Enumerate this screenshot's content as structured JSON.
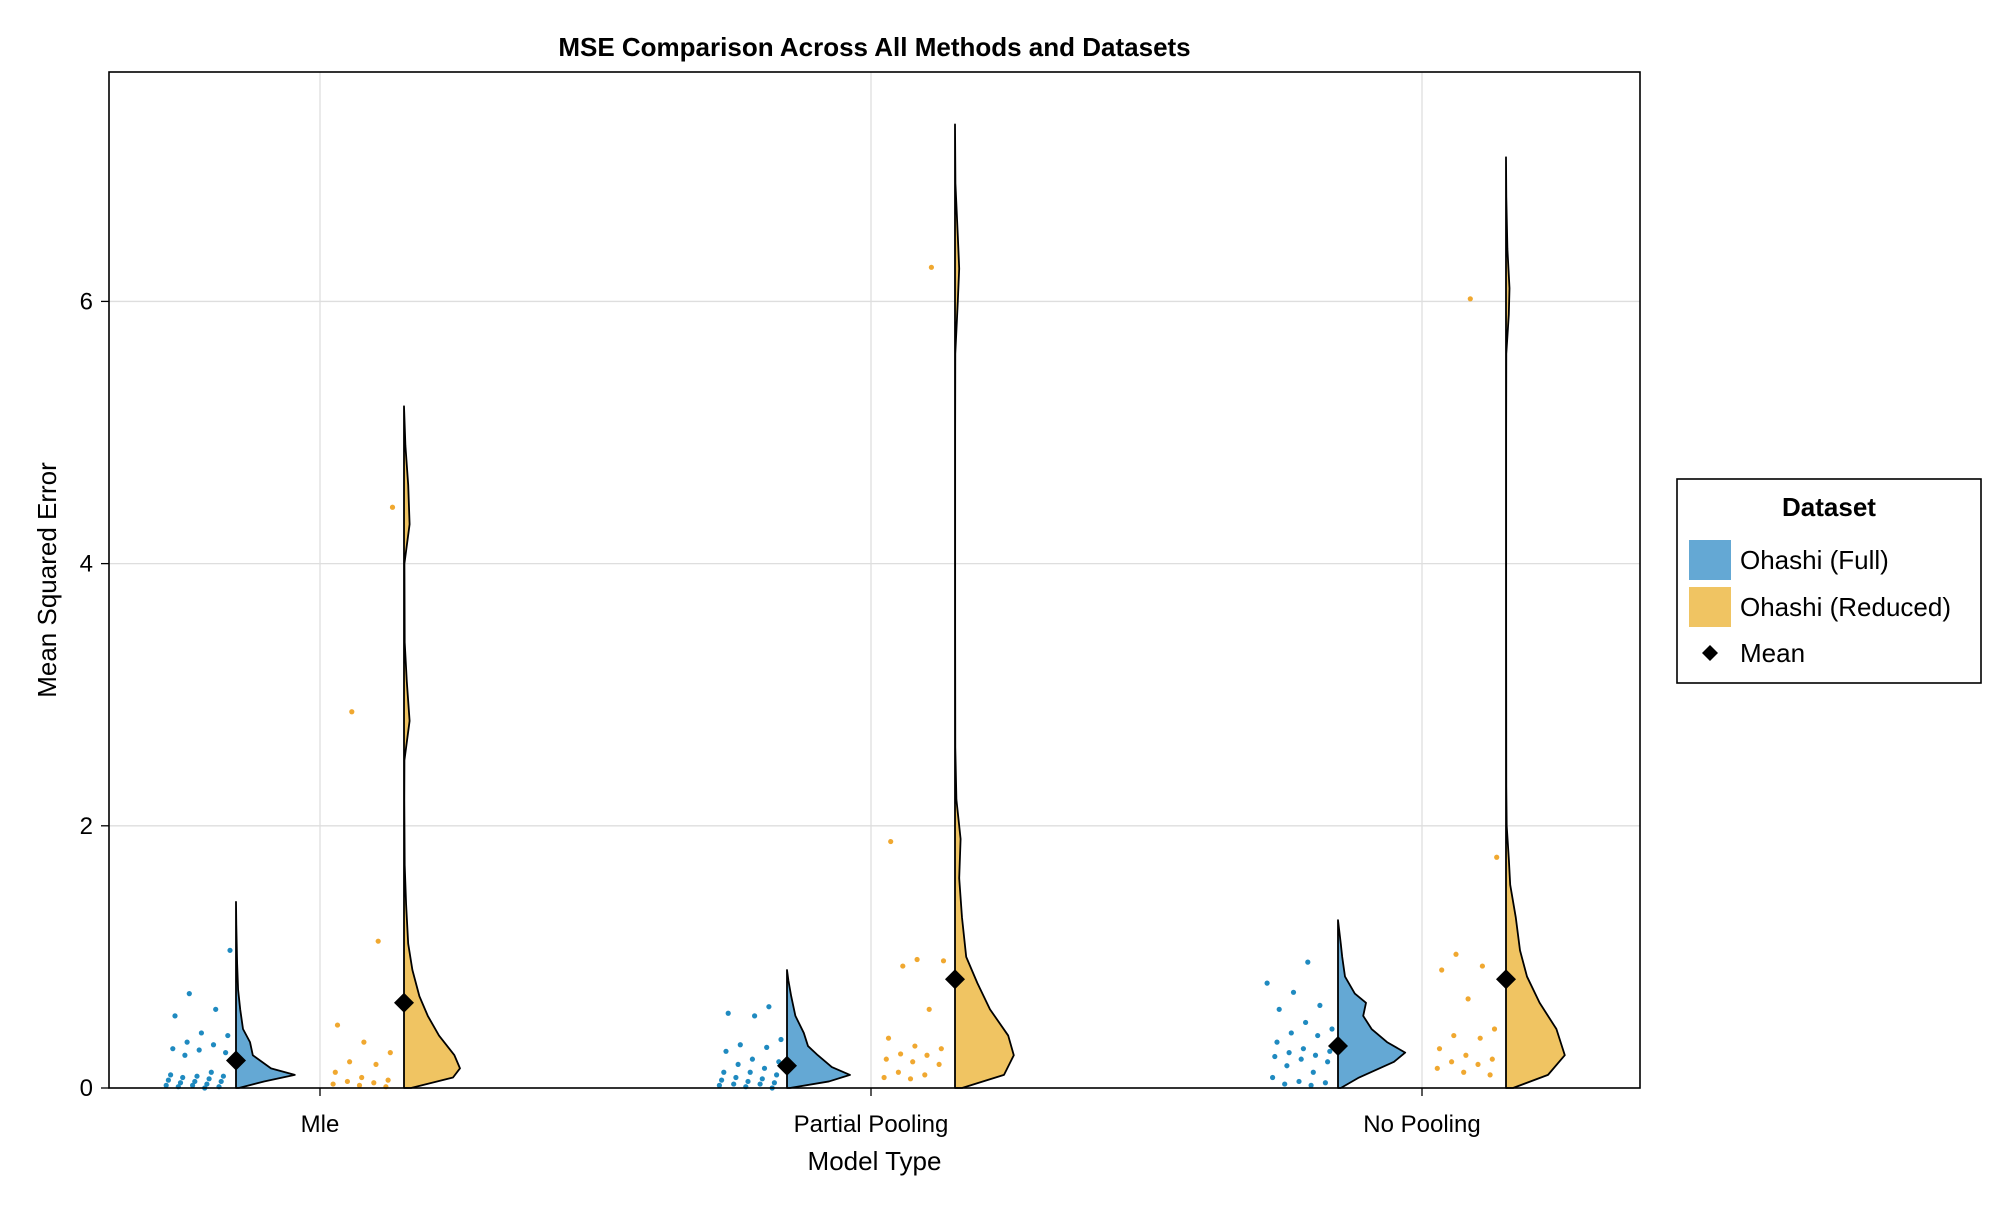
{
  "chart_data": {
    "type": "violin",
    "title": "MSE Comparison Across All Methods and Datasets",
    "xlabel": "Model Type",
    "ylabel": "Mean Squared Error",
    "categories": [
      "Mle",
      "Partial Pooling",
      "No Pooling"
    ],
    "ylim": [
      0,
      7.75
    ],
    "yticks": [
      0,
      2,
      4,
      6
    ],
    "grid": true,
    "legend": {
      "title": "Dataset",
      "position": "right",
      "entries": [
        "Ohashi (Full)",
        "Ohashi (Reduced)",
        "Mean"
      ]
    },
    "colors": {
      "full": "#64a8d4",
      "full_points": "#1f8ac0",
      "reduced": "#f0c462",
      "reduced_points": "#f0a830",
      "mean_marker": "#000000"
    },
    "series": [
      {
        "name": "Ohashi (Full)",
        "means": [
          0.21,
          0.17,
          0.32
        ],
        "max": [
          1.42,
          0.9,
          1.28
        ],
        "density": [
          [
            [
              0,
              0.02
            ],
            [
              0.05,
              0.2
            ],
            [
              0.1,
              0.42
            ],
            [
              0.15,
              0.25
            ],
            [
              0.25,
              0.12
            ],
            [
              0.35,
              0.1
            ],
            [
              0.45,
              0.05
            ],
            [
              0.6,
              0.03
            ],
            [
              0.75,
              0.015
            ],
            [
              0.95,
              0.008
            ],
            [
              1.1,
              0.005
            ],
            [
              1.25,
              0.002
            ],
            [
              1.42,
              0
            ]
          ],
          [
            [
              0,
              0.02
            ],
            [
              0.05,
              0.3
            ],
            [
              0.1,
              0.45
            ],
            [
              0.16,
              0.32
            ],
            [
              0.25,
              0.22
            ],
            [
              0.32,
              0.15
            ],
            [
              0.42,
              0.12
            ],
            [
              0.55,
              0.06
            ],
            [
              0.7,
              0.03
            ],
            [
              0.82,
              0.01
            ],
            [
              0.9,
              0
            ]
          ],
          [
            [
              0,
              0.02
            ],
            [
              0.08,
              0.15
            ],
            [
              0.2,
              0.4
            ],
            [
              0.27,
              0.48
            ],
            [
              0.35,
              0.35
            ],
            [
              0.45,
              0.24
            ],
            [
              0.55,
              0.18
            ],
            [
              0.65,
              0.2
            ],
            [
              0.72,
              0.12
            ],
            [
              0.85,
              0.05
            ],
            [
              1.0,
              0.03
            ],
            [
              1.1,
              0.02
            ],
            [
              1.28,
              0
            ]
          ]
        ],
        "points": [
          [
            1.05,
            0.72,
            0.6,
            0.55,
            0.42,
            0.4,
            0.35,
            0.33,
            0.3,
            0.29,
            0.27,
            0.25,
            0.12,
            0.1,
            0.09,
            0.09,
            0.08,
            0.07,
            0.06,
            0.05,
            0.05,
            0.04,
            0.03,
            0.02,
            0.02,
            0.01,
            0.01,
            0.0
          ],
          [
            0.62,
            0.57,
            0.55,
            0.37,
            0.33,
            0.31,
            0.28,
            0.22,
            0.2,
            0.18,
            0.15,
            0.12,
            0.12,
            0.1,
            0.08,
            0.07,
            0.06,
            0.05,
            0.04,
            0.03,
            0.03,
            0.02,
            0.01,
            0.0
          ],
          [
            0.96,
            0.8,
            0.73,
            0.63,
            0.6,
            0.5,
            0.45,
            0.42,
            0.4,
            0.35,
            0.3,
            0.28,
            0.27,
            0.25,
            0.24,
            0.22,
            0.2,
            0.17,
            0.12,
            0.08,
            0.05,
            0.04,
            0.03,
            0.02
          ]
        ]
      },
      {
        "name": "Ohashi (Reduced)",
        "means": [
          0.65,
          0.83,
          0.83
        ],
        "max": [
          5.2,
          7.35,
          7.1
        ],
        "density": [
          [
            [
              0,
              0.05
            ],
            [
              0.08,
              0.35
            ],
            [
              0.15,
              0.4
            ],
            [
              0.25,
              0.36
            ],
            [
              0.4,
              0.25
            ],
            [
              0.55,
              0.17
            ],
            [
              0.7,
              0.11
            ],
            [
              0.9,
              0.06
            ],
            [
              1.1,
              0.03
            ],
            [
              1.4,
              0.015
            ],
            [
              1.7,
              0.005
            ],
            [
              2.2,
              0.002
            ],
            [
              2.5,
              0.003
            ],
            [
              2.8,
              0.04
            ],
            [
              3.1,
              0.02
            ],
            [
              3.4,
              0.005
            ],
            [
              4.0,
              0.003
            ],
            [
              4.3,
              0.04
            ],
            [
              4.6,
              0.03
            ],
            [
              4.9,
              0.01
            ],
            [
              5.2,
              0
            ]
          ],
          [
            [
              0,
              0.05
            ],
            [
              0.1,
              0.35
            ],
            [
              0.25,
              0.42
            ],
            [
              0.4,
              0.38
            ],
            [
              0.6,
              0.25
            ],
            [
              0.8,
              0.16
            ],
            [
              1.0,
              0.08
            ],
            [
              1.3,
              0.05
            ],
            [
              1.6,
              0.03
            ],
            [
              1.9,
              0.04
            ],
            [
              2.2,
              0.01
            ],
            [
              2.6,
              0.002
            ],
            [
              3.5,
              0.001
            ],
            [
              5.0,
              0.001
            ],
            [
              5.6,
              0.002
            ],
            [
              6.0,
              0.02
            ],
            [
              6.25,
              0.03
            ],
            [
              6.5,
              0.02
            ],
            [
              6.9,
              0.003
            ],
            [
              7.35,
              0
            ]
          ],
          [
            [
              0,
              0.05
            ],
            [
              0.1,
              0.3
            ],
            [
              0.25,
              0.42
            ],
            [
              0.45,
              0.36
            ],
            [
              0.65,
              0.24
            ],
            [
              0.85,
              0.15
            ],
            [
              1.05,
              0.1
            ],
            [
              1.3,
              0.07
            ],
            [
              1.55,
              0.03
            ],
            [
              1.75,
              0.02
            ],
            [
              2.0,
              0.005
            ],
            [
              2.3,
              0.002
            ],
            [
              3.5,
              0.001
            ],
            [
              5.0,
              0.001
            ],
            [
              5.6,
              0.002
            ],
            [
              5.9,
              0.02
            ],
            [
              6.1,
              0.025
            ],
            [
              6.4,
              0.01
            ],
            [
              6.8,
              0.002
            ],
            [
              7.1,
              0
            ]
          ]
        ],
        "points": [
          [
            4.43,
            2.87,
            1.12,
            0.48,
            0.35,
            0.27,
            0.2,
            0.18,
            0.12,
            0.08,
            0.06,
            0.05,
            0.04,
            0.03,
            0.02,
            0.01
          ],
          [
            6.26,
            1.88,
            0.98,
            0.97,
            0.93,
            0.6,
            0.38,
            0.32,
            0.3,
            0.26,
            0.25,
            0.22,
            0.2,
            0.18,
            0.12,
            0.1,
            0.08,
            0.07
          ],
          [
            6.02,
            1.76,
            1.02,
            0.93,
            0.9,
            0.68,
            0.45,
            0.4,
            0.38,
            0.3,
            0.25,
            0.22,
            0.2,
            0.18,
            0.15,
            0.12,
            0.1
          ]
        ]
      }
    ]
  }
}
